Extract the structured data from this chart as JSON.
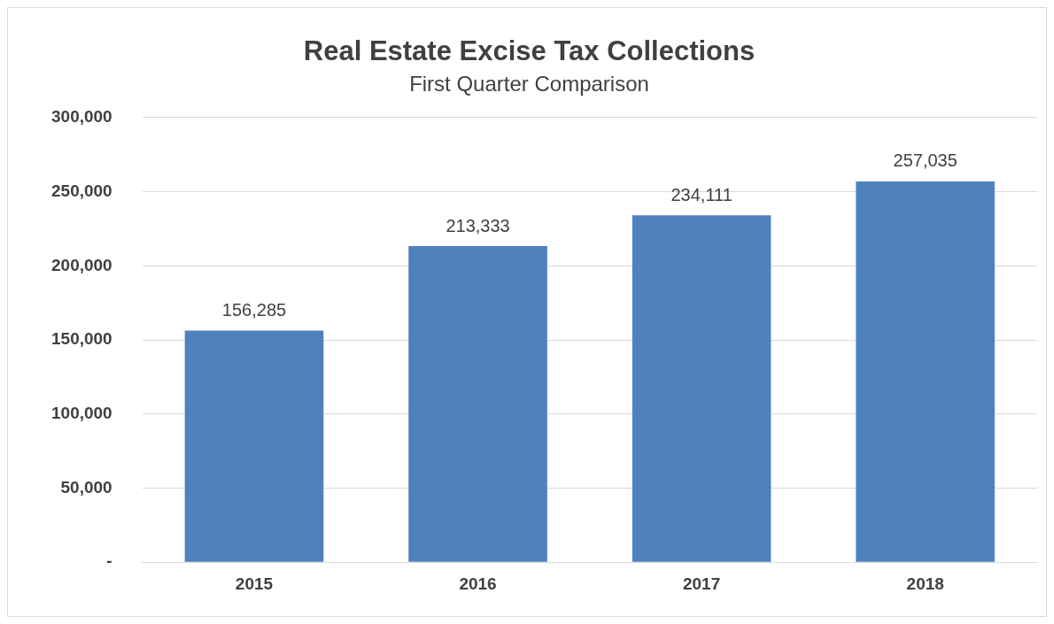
{
  "chart_data": {
    "type": "bar",
    "title": "Real Estate Excise Tax Collections",
    "subtitle": "First Quarter Comparison",
    "categories": [
      "2015",
      "2016",
      "2017",
      "2018"
    ],
    "values": [
      156285,
      213333,
      234111,
      257035
    ],
    "value_labels": [
      "156,285",
      "213,333",
      "234,111",
      "257,035"
    ],
    "color": "#4f81bd",
    "ylim": [
      0,
      300000
    ],
    "yticks": [
      {
        "value": 0,
        "label": "-"
      },
      {
        "value": 50000,
        "label": "50,000"
      },
      {
        "value": 100000,
        "label": "100,000"
      },
      {
        "value": 150000,
        "label": "150,000"
      },
      {
        "value": 200000,
        "label": "200,000"
      },
      {
        "value": 250000,
        "label": "250,000"
      },
      {
        "value": 300000,
        "label": "300,000"
      }
    ],
    "grid": "y",
    "legend": false
  }
}
